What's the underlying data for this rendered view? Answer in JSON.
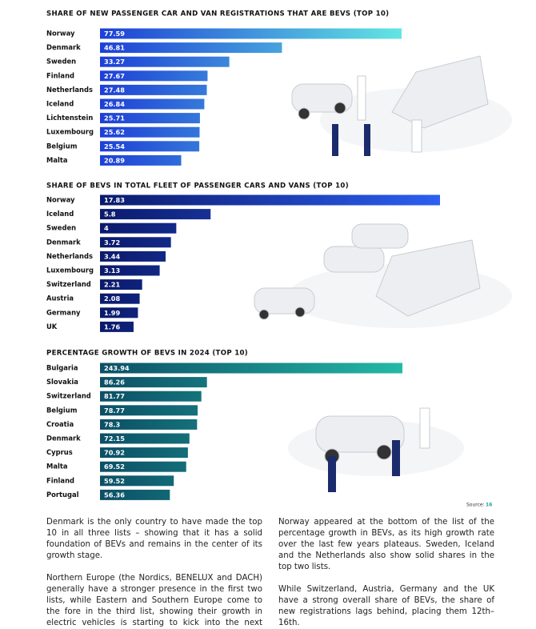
{
  "chart_data": [
    {
      "type": "bar",
      "orientation": "horizontal",
      "title": "SHARE OF NEW PASSENGER CAR AND VAN REGISTRATIONS THAT ARE BEVS (TOP 10)",
      "categories": [
        "Norway",
        "Denmark",
        "Sweden",
        "Finland",
        "Netherlands",
        "Iceland",
        "Lichtenstein",
        "Luxembourg",
        "Belgium",
        "Malta"
      ],
      "values": [
        77.59,
        46.81,
        33.27,
        27.67,
        27.48,
        26.84,
        25.71,
        25.62,
        25.54,
        20.89
      ],
      "colors": [
        "#1d3fd6",
        "#63e6e2"
      ]
    },
    {
      "type": "bar",
      "orientation": "horizontal",
      "title": "SHARE OF BEVS IN TOTAL FLEET OF PASSENGER CARS AND VANS (TOP 10)",
      "categories": [
        "Norway",
        "Iceland",
        "Sweden",
        "Denmark",
        "Netherlands",
        "Luxembourg",
        "Switzerland",
        "Austria",
        "Germany",
        "UK"
      ],
      "values": [
        17.83,
        5.8,
        4,
        3.72,
        3.44,
        3.13,
        2.21,
        2.08,
        1.99,
        1.76
      ],
      "colors": [
        "#0b1a6b",
        "#2c5ff2"
      ]
    },
    {
      "type": "bar",
      "orientation": "horizontal",
      "title": "PERCENTAGE GROWTH OF BEVS IN 2024 (TOP 10)",
      "categories": [
        "Bulgaria",
        "Slovakia",
        "Switzerland",
        "Belgium",
        "Croatia",
        "Denmark",
        "Cyprus",
        "Malta",
        "Finland",
        "Portugal"
      ],
      "values": [
        243.94,
        86.26,
        81.77,
        78.77,
        78.3,
        72.15,
        70.92,
        69.52,
        59.52,
        56.36
      ],
      "colors": [
        "#0c4f66",
        "#24b9a6"
      ]
    }
  ],
  "source": {
    "label": "Source:",
    "ref": "16"
  },
  "paragraphs": [
    "Denmark is the only country to have made the top 10 in all three lists – showing that it has a solid foundation of BEVs and remains in the center of its growth stage.",
    "Northern Europe (the Nordics, BENELUX and DACH) generally have a stronger presence in the first two lists, while Eastern and Southern Europe come to the fore in the third list, showing their growth in electric vehicles is starting to kick into the next gear.",
    "Norway appeared at the bottom of the list of the percentage growth in BEVs, as its high growth rate over the last few years plateaus. Sweden, Iceland and the Netherlands also show solid shares in the top two lists.",
    "While Switzerland, Austria, Germany and the UK have a strong overall share of BEVs, the share of new registrations lags behind, placing them 12th–16th."
  ]
}
